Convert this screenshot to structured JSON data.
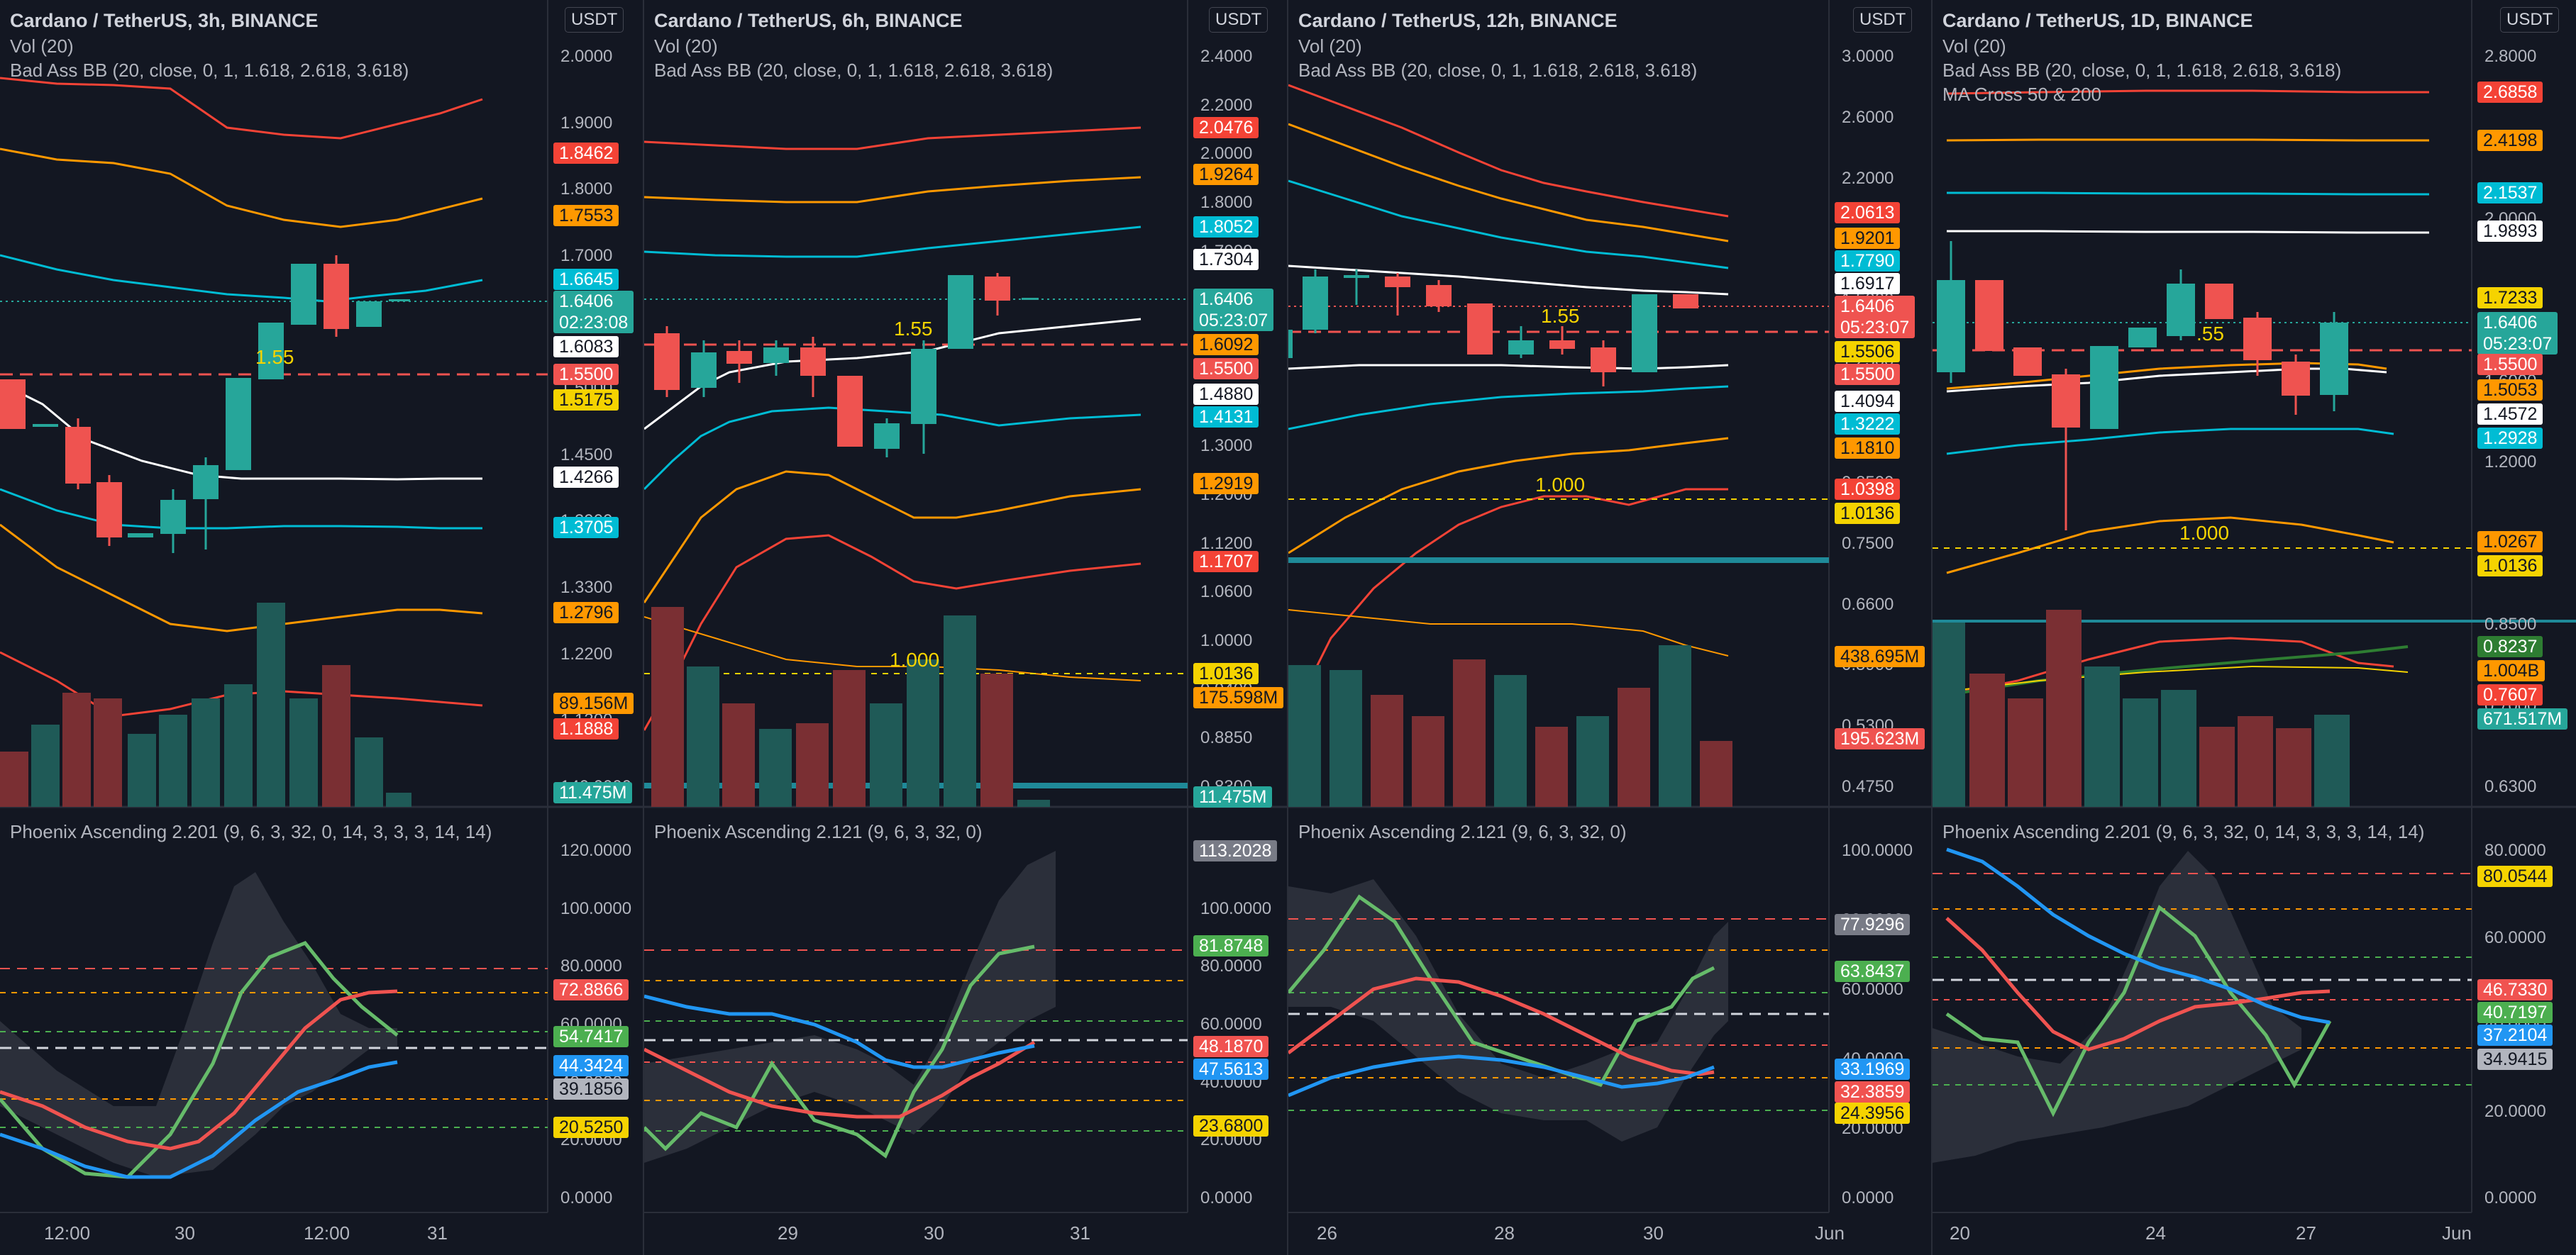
{
  "colors": {
    "background": "#131722",
    "grid": "#1e222d",
    "up": "#26a69a",
    "down": "#ef5350",
    "up_vol": "#1f5a57",
    "down_vol": "#7a2f33",
    "bb_mid": "#ffffff",
    "bb_1": "#00bcd4",
    "bb_2": "#ff9800",
    "bb_3": "#f44336",
    "fib": "#f5d300",
    "green_line": "#4caf50",
    "red_line": "#f05350",
    "blue_line": "#2196f3",
    "cloud": "#363a45"
  },
  "panels": [
    {
      "id": "3h",
      "title": "Cardano / TetherUS, 3h, BINANCE",
      "currency_badge": "USDT",
      "legend_lines": [
        "Vol (20)",
        "Bad Ass BB (20, close, 0, 1, 1.618, 2.618, 3.618)"
      ],
      "oscillator_title": "Phoenix Ascending 2.201 (9, 6, 3, 32, 0, 14, 3, 3, 3, 14, 14)",
      "x_ticks": [
        "12:00",
        "30",
        "12:00",
        "31"
      ],
      "price_ticks": [
        "2.0000",
        "1.9000",
        "1.8000",
        "1.7000",
        "1.6000",
        "1.5000",
        "1.4500",
        "1.3900",
        "1.3300",
        "1.2200",
        "1.1300",
        "140.0000"
      ],
      "osc_ticks": [
        "120.0000",
        "100.0000",
        "80.0000",
        "60.0000",
        "40.0000",
        "20.0000",
        "0.0000"
      ],
      "price_badges": [
        {
          "text": "1.8462",
          "color": "#f44336"
        },
        {
          "text": "1.7553",
          "color": "#ff9800"
        },
        {
          "text": "1.6645",
          "color": "#00bcd4"
        },
        {
          "text": "1.6406",
          "color": "#26a69a",
          "sub": "02:23:08"
        },
        {
          "text": "1.6083",
          "color": "#ffffff"
        },
        {
          "text": "1.5500",
          "color": "#f05350"
        },
        {
          "text": "1.5175",
          "color": "#f5d300"
        },
        {
          "text": "1.4266",
          "color": "#ffffff"
        },
        {
          "text": "1.3705",
          "color": "#00bcd4"
        },
        {
          "text": "1.2796",
          "color": "#ff9800"
        },
        {
          "text": "89.156M",
          "color": "#ff9800"
        },
        {
          "text": "1.1888",
          "color": "#f44336"
        },
        {
          "text": "11.475M",
          "color": "#26a69a"
        }
      ],
      "osc_badges": [
        {
          "text": "72.8866",
          "color": "#f05350"
        },
        {
          "text": "54.7417",
          "color": "#4caf50"
        },
        {
          "text": "44.3424",
          "color": "#2196f3"
        },
        {
          "text": "39.1856",
          "color": "#b2b5be"
        },
        {
          "text": "20.5250",
          "color": "#f5d300"
        }
      ],
      "fib_label": "1.55"
    },
    {
      "id": "6h",
      "title": "Cardano / TetherUS, 6h, BINANCE",
      "currency_badge": "USDT",
      "legend_lines": [
        "Vol (20)",
        "Bad Ass BB (20, close, 0, 1, 1.618, 2.618, 3.618)"
      ],
      "oscillator_title": "Phoenix Ascending 2.121 (9, 6, 3, 32, 0)",
      "x_ticks": [
        "29",
        "30",
        "31"
      ],
      "price_ticks": [
        "2.4000",
        "2.2000",
        "2.0000",
        "1.8000",
        "1.7000",
        "1.6000",
        "1.5000",
        "1.4000",
        "1.3000",
        "1.2000",
        "1.1200",
        "1.0600",
        "1.0000",
        "0.9400",
        "0.8850",
        "0.8300"
      ],
      "osc_ticks": [
        "120.0000",
        "100.0000",
        "80.0000",
        "60.0000",
        "40.0000",
        "20.0000",
        "0.0000"
      ],
      "price_badges": [
        {
          "text": "2.0476",
          "color": "#f44336"
        },
        {
          "text": "1.9264",
          "color": "#ff9800"
        },
        {
          "text": "1.8052",
          "color": "#00bcd4"
        },
        {
          "text": "1.7304",
          "color": "#ffffff"
        },
        {
          "text": "1.6406",
          "color": "#26a69a",
          "sub": "05:23:07"
        },
        {
          "text": "1.6092",
          "color": "#ff9800"
        },
        {
          "text": "1.5500",
          "color": "#f05350"
        },
        {
          "text": "1.4880",
          "color": "#ffffff"
        },
        {
          "text": "1.4131",
          "color": "#00bcd4"
        },
        {
          "text": "1.2919",
          "color": "#ff9800"
        },
        {
          "text": "1.1707",
          "color": "#f44336"
        },
        {
          "text": "1.0136",
          "color": "#f5d300"
        },
        {
          "text": "175.598M",
          "color": "#ff9800"
        },
        {
          "text": "11.475M",
          "color": "#26a69a"
        }
      ],
      "osc_badges": [
        {
          "text": "113.2028",
          "color": "#787b86"
        },
        {
          "text": "81.8748",
          "color": "#4caf50"
        },
        {
          "text": "48.1870",
          "color": "#f05350"
        },
        {
          "text": "47.5613",
          "color": "#2196f3"
        },
        {
          "text": "23.6800",
          "color": "#f5d300"
        }
      ],
      "fib_label": "1.55",
      "fib_label_2": "1.000"
    },
    {
      "id": "12h",
      "title": "Cardano / TetherUS, 12h, BINANCE",
      "currency_badge": "USDT",
      "legend_lines": [
        "Vol (20)",
        "Bad Ass BB (20, close, 0, 1, 1.618, 2.618, 3.618)"
      ],
      "oscillator_title": "Phoenix Ascending 2.121 (9, 6, 3, 32, 0)",
      "x_ticks": [
        "26",
        "28",
        "30",
        "Jun"
      ],
      "price_ticks": [
        "3.0000",
        "2.6000",
        "2.2000",
        "1.8000",
        "1.5000",
        "1.2500",
        "1.0500",
        "0.8500",
        "0.7500",
        "0.6600",
        "0.5900",
        "0.5300",
        "0.4750"
      ],
      "osc_ticks": [
        "100.0000",
        "80.0000",
        "60.0000",
        "40.0000",
        "20.0000",
        "0.0000"
      ],
      "price_badges": [
        {
          "text": "2.0613",
          "color": "#f44336"
        },
        {
          "text": "1.9201",
          "color": "#ff9800"
        },
        {
          "text": "1.7790",
          "color": "#00bcd4"
        },
        {
          "text": "1.6917",
          "color": "#ffffff"
        },
        {
          "text": "1.6406",
          "color": "#ef5350",
          "sub": "05:23:07"
        },
        {
          "text": "1.5506",
          "color": "#f5d300"
        },
        {
          "text": "1.5500",
          "color": "#f05350"
        },
        {
          "text": "1.4094",
          "color": "#ffffff"
        },
        {
          "text": "1.3222",
          "color": "#00bcd4"
        },
        {
          "text": "1.1810",
          "color": "#ff9800"
        },
        {
          "text": "1.0398",
          "color": "#f44336"
        },
        {
          "text": "1.0136",
          "color": "#f5d300"
        },
        {
          "text": "438.695M",
          "color": "#ff9800"
        },
        {
          "text": "195.623M",
          "color": "#ef5350"
        }
      ],
      "osc_badges": [
        {
          "text": "77.9296",
          "color": "#787b86"
        },
        {
          "text": "63.8437",
          "color": "#4caf50"
        },
        {
          "text": "33.1969",
          "color": "#2196f3"
        },
        {
          "text": "32.3859",
          "color": "#f05350"
        },
        {
          "text": "24.3956",
          "color": "#f5d300"
        }
      ],
      "fib_label": "1.55",
      "fib_label_2": "1.000"
    },
    {
      "id": "1D",
      "title": "Cardano / TetherUS, 1D, BINANCE",
      "currency_badge": "USDT",
      "legend_lines": [
        "Vol (20)",
        "Bad Ass BB (20, close, 0, 1, 1.618, 2.618, 3.618)",
        "MA Cross 50 & 200"
      ],
      "oscillator_title": "Phoenix Ascending 2.201 (9, 6, 3, 32, 0, 14, 3, 3, 3, 14, 14)",
      "x_ticks": [
        "20",
        "24",
        "27",
        "Jun"
      ],
      "price_ticks": [
        "2.8000",
        "2.4000",
        "2.0000",
        "1.9000",
        "1.6000",
        "1.2000",
        "0.9500",
        "0.8500",
        "0.7000",
        "0.6300"
      ],
      "osc_ticks": [
        "80.0000",
        "60.0000",
        "40.0000",
        "20.0000",
        "0.0000"
      ],
      "price_badges": [
        {
          "text": "2.6858",
          "color": "#f44336"
        },
        {
          "text": "2.4198",
          "color": "#ff9800"
        },
        {
          "text": "2.1537",
          "color": "#00bcd4"
        },
        {
          "text": "1.9893",
          "color": "#ffffff"
        },
        {
          "text": "1.7233",
          "color": "#f5d300"
        },
        {
          "text": "1.6406",
          "color": "#26a69a",
          "sub": "05:23:07"
        },
        {
          "text": "1.5500",
          "color": "#f05350"
        },
        {
          "text": "1.5053",
          "color": "#ff9800"
        },
        {
          "text": "1.4572",
          "color": "#ffffff"
        },
        {
          "text": "1.2928",
          "color": "#00bcd4"
        },
        {
          "text": "1.0267",
          "color": "#ff9800"
        },
        {
          "text": "1.0136",
          "color": "#f5d300"
        },
        {
          "text": "0.8237",
          "color": "#2e7d32"
        },
        {
          "text": "1.004B",
          "color": "#ff9800"
        },
        {
          "text": "0.7607",
          "color": "#f44336"
        },
        {
          "text": "671.517M",
          "color": "#26a69a"
        }
      ],
      "osc_badges": [
        {
          "text": "80.0544",
          "color": "#f5d300"
        },
        {
          "text": "46.7330",
          "color": "#f05350"
        },
        {
          "text": "40.7197",
          "color": "#4caf50"
        },
        {
          "text": "37.2104",
          "color": "#2196f3"
        },
        {
          "text": "34.9415",
          "color": "#b2b5be"
        }
      ],
      "fib_label": ".55",
      "fib_label_2": "1.000"
    }
  ]
}
